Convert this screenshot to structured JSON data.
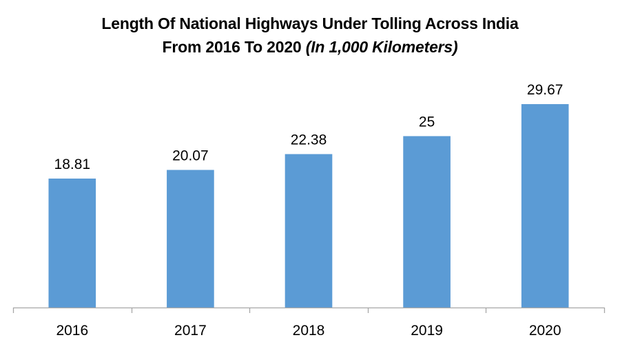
{
  "chart_data": {
    "type": "bar",
    "title_line1": "Length Of National Highways Under Tolling Across India",
    "title_line2_regular": "From 2016 To 2020 ",
    "title_line2_italic": "(In 1,000 Kilometers)",
    "categories": [
      "2016",
      "2017",
      "2018",
      "2019",
      "2020"
    ],
    "values": [
      18.81,
      20.07,
      22.38,
      25,
      29.67
    ],
    "data_labels": [
      "18.81",
      "20.07",
      "22.38",
      "25",
      "29.67"
    ],
    "xlabel": "",
    "ylabel": "",
    "ylim": [
      0,
      35
    ],
    "grid": false,
    "legend": "none",
    "bar_color": "#5b9bd5",
    "axis_color": "#a6a6a6"
  }
}
